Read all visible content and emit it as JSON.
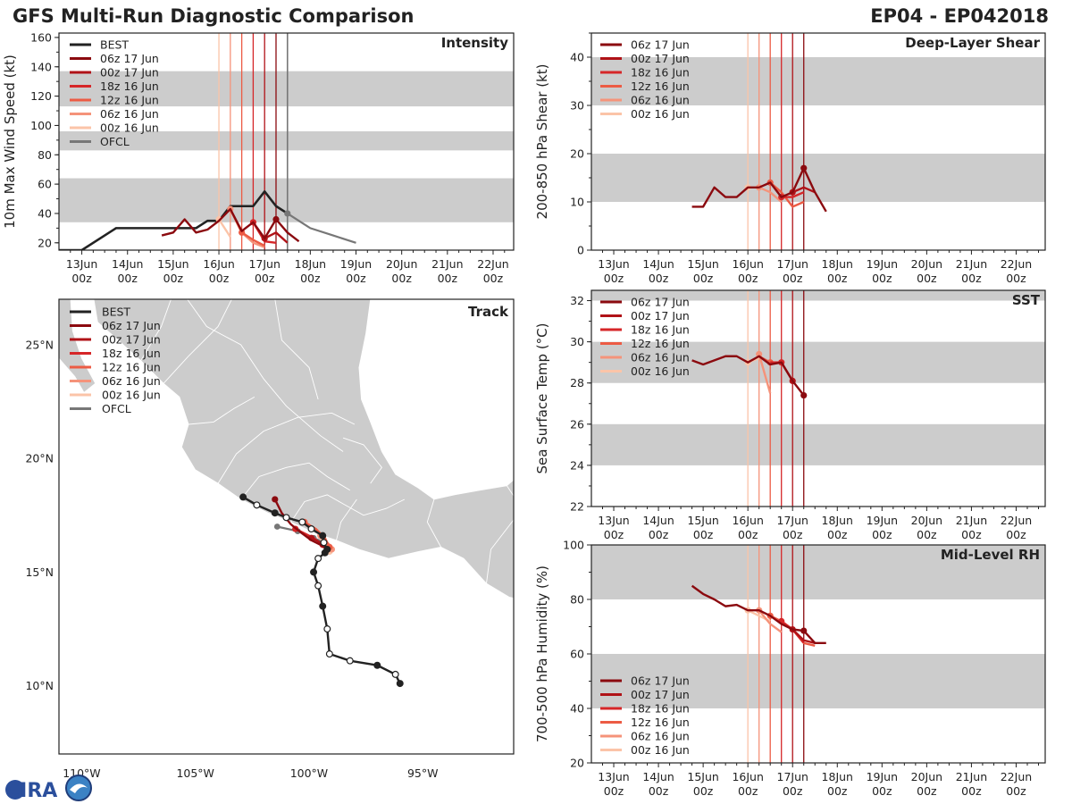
{
  "header": {
    "title": "GFS Multi-Run Diagnostic Comparison",
    "storm_id": "EP04 - EP042018"
  },
  "logo": {
    "text": "CIRA"
  },
  "colors": {
    "best": "#222222",
    "ofcl": "#777777",
    "band": "#cccccc",
    "runs": [
      "#8b0a0f",
      "#b01217",
      "#d62628",
      "#ec5b44",
      "#f5937a",
      "#fbc4a8"
    ]
  },
  "time_ticks": [
    "13Jun",
    "14Jun",
    "15Jun",
    "16Jun",
    "17Jun",
    "18Jun",
    "19Jun",
    "20Jun",
    "21Jun",
    "22Jun"
  ],
  "time_sub": "00z",
  "chart_data": [
    {
      "id": "intensity",
      "type": "line",
      "title": "Intensity",
      "ylabel": "10m Max Wind Speed (kt)",
      "xlim": [
        12.5,
        22.45
      ],
      "ylim": [
        15,
        163
      ],
      "yticks": [
        20,
        40,
        60,
        80,
        100,
        120,
        140,
        160
      ],
      "bands": [
        [
          34,
          64
        ],
        [
          83,
          96
        ],
        [
          113,
          137
        ]
      ],
      "init_lines": [
        16.0,
        16.25,
        16.5,
        16.75,
        17.0,
        17.25
      ],
      "ofcl_line": 17.5,
      "legend": [
        "BEST",
        "06z 17 Jun",
        "00z 17 Jun",
        "18z 16 Jun",
        "12z 16 Jun",
        "06z 16 Jun",
        "00z 16 Jun",
        "OFCL"
      ],
      "best": {
        "x": [
          12.5,
          13.0,
          13.75,
          15.0,
          15.25,
          15.5,
          15.75,
          16.0,
          16.25,
          16.5,
          16.75,
          17.0,
          17.25,
          17.5
        ],
        "y": [
          15,
          15,
          30,
          30,
          30,
          30,
          35,
          35,
          45,
          45,
          45,
          55,
          45,
          40
        ]
      },
      "ofcl": {
        "x": [
          17.5,
          17.75,
          18.0,
          18.5,
          19.0
        ],
        "y": [
          40,
          35,
          30,
          25,
          20
        ]
      },
      "runs": [
        {
          "name": "06z 17 Jun",
          "x": [
            14.75,
            15.0,
            15.25,
            15.5,
            15.75,
            16.0,
            16.25,
            16.5,
            16.75,
            17.0,
            17.25,
            17.5,
            17.75
          ],
          "y": [
            25,
            27,
            36,
            27,
            29,
            35,
            43,
            28,
            34,
            23,
            36,
            27,
            21
          ]
        },
        {
          "name": "00z 17 Jun",
          "x": [
            17.0,
            17.25,
            17.5
          ],
          "y": [
            23,
            27,
            20
          ]
        },
        {
          "name": "18z 16 Jun",
          "x": [
            16.75,
            17.0,
            17.25
          ],
          "y": [
            34,
            21,
            20
          ]
        },
        {
          "name": "12z 16 Jun",
          "x": [
            16.25,
            16.5,
            16.75,
            17.0
          ],
          "y": [
            43,
            27,
            22,
            18
          ]
        },
        {
          "name": "06z 16 Jun",
          "x": [
            16.25,
            16.5,
            16.75,
            17.0
          ],
          "y": [
            43,
            27,
            20,
            17
          ]
        },
        {
          "name": "00z 16 Jun",
          "x": [
            16.0,
            16.25
          ],
          "y": [
            36,
            24
          ]
        }
      ]
    },
    {
      "id": "shear",
      "type": "line",
      "title": "Deep-Layer Shear",
      "ylabel": "200-850 hPa Shear (kt)",
      "xlim": [
        12.5,
        22.65
      ],
      "ylim": [
        0,
        45
      ],
      "yticks": [
        0,
        10,
        20,
        30,
        40
      ],
      "bands": [
        [
          10,
          20
        ],
        [
          30,
          40
        ]
      ],
      "init_lines": [
        16.0,
        16.25,
        16.5,
        16.75,
        17.0,
        17.25
      ],
      "legend": [
        "06z 17 Jun",
        "00z 17 Jun",
        "18z 16 Jun",
        "12z 16 Jun",
        "06z 16 Jun",
        "00z 16 Jun"
      ],
      "runs": [
        {
          "name": "06z 17 Jun",
          "x": [
            14.75,
            15.0,
            15.25,
            15.5,
            15.75,
            16.0,
            16.25,
            16.5,
            16.75,
            17.0,
            17.25,
            17.5,
            17.75
          ],
          "y": [
            9,
            9,
            13,
            11,
            11,
            13,
            13,
            14,
            11,
            12,
            17,
            12,
            8
          ]
        },
        {
          "name": "00z 17 Jun",
          "x": [
            17.0,
            17.25,
            17.5
          ],
          "y": [
            12,
            13,
            12
          ]
        },
        {
          "name": "18z 16 Jun",
          "x": [
            16.75,
            17.0,
            17.25
          ],
          "y": [
            11,
            11,
            12
          ]
        },
        {
          "name": "12z 16 Jun",
          "x": [
            16.5,
            16.75,
            17.0,
            17.25
          ],
          "y": [
            14,
            12,
            9,
            10
          ]
        },
        {
          "name": "06z 16 Jun",
          "x": [
            16.25,
            16.5,
            16.75
          ],
          "y": [
            13,
            12,
            10
          ]
        },
        {
          "name": "00z 16 Jun",
          "x": [
            16.0,
            16.25
          ],
          "y": [
            13,
            13
          ]
        }
      ]
    },
    {
      "id": "sst",
      "type": "line",
      "title": "SST",
      "ylabel": "Sea Surface Temp (°C)",
      "xlim": [
        12.5,
        22.65
      ],
      "ylim": [
        22,
        32.5
      ],
      "yticks": [
        22,
        24,
        26,
        28,
        30,
        32
      ],
      "bands": [
        [
          24,
          26
        ],
        [
          28,
          30
        ],
        [
          32,
          32.5
        ]
      ],
      "init_lines": [
        16.0,
        16.25,
        16.5,
        16.75,
        17.0,
        17.25
      ],
      "legend": [
        "06z 17 Jun",
        "00z 17 Jun",
        "18z 16 Jun",
        "12z 16 Jun",
        "06z 16 Jun",
        "00z 16 Jun"
      ],
      "runs": [
        {
          "name": "06z 17 Jun",
          "x": [
            14.75,
            15.0,
            15.25,
            15.5,
            15.75,
            16.0,
            16.25,
            16.5,
            16.75,
            17.0,
            17.25
          ],
          "y": [
            29.1,
            28.9,
            29.1,
            29.3,
            29.3,
            29.0,
            29.3,
            28.9,
            29.0,
            28.1,
            27.4
          ]
        },
        {
          "name": "00z 17 Jun",
          "x": [
            16.75,
            17.0
          ],
          "y": [
            29.0,
            28.1
          ]
        },
        {
          "name": "18z 16 Jun",
          "x": [
            16.5,
            16.75
          ],
          "y": [
            29.0,
            29.0
          ]
        },
        {
          "name": "12z 16 Jun",
          "x": [
            16.25,
            16.5,
            16.75
          ],
          "y": [
            29.3,
            29.0,
            29.0
          ]
        },
        {
          "name": "06z 16 Jun",
          "x": [
            16.25,
            16.5
          ],
          "y": [
            29.4,
            27.5
          ]
        },
        {
          "name": "00z 16 Jun",
          "x": [
            16.0,
            16.25
          ],
          "y": [
            29.0,
            29.2
          ]
        }
      ]
    },
    {
      "id": "rh",
      "type": "line",
      "title": "Mid-Level RH",
      "ylabel": "700-500 hPa Humidity (%)",
      "xlim": [
        12.5,
        22.65
      ],
      "ylim": [
        20,
        100
      ],
      "yticks": [
        20,
        40,
        60,
        80,
        100
      ],
      "bands": [
        [
          40,
          60
        ],
        [
          80,
          100
        ]
      ],
      "init_lines": [
        16.0,
        16.25,
        16.5,
        16.75,
        17.0,
        17.25
      ],
      "legend": [
        "06z 17 Jun",
        "00z 17 Jun",
        "18z 16 Jun",
        "12z 16 Jun",
        "06z 16 Jun",
        "00z 16 Jun"
      ],
      "runs": [
        {
          "name": "06z 17 Jun",
          "x": [
            14.75,
            15.0,
            15.25,
            15.5,
            15.75,
            16.0,
            16.25,
            16.5,
            16.75,
            17.0,
            17.25,
            17.5,
            17.75
          ],
          "y": [
            85,
            82,
            80,
            77.5,
            78,
            76,
            76,
            74,
            71,
            69,
            68.5,
            64,
            64
          ]
        },
        {
          "name": "00z 17 Jun",
          "x": [
            17.0,
            17.25,
            17.5
          ],
          "y": [
            69,
            65,
            64
          ]
        },
        {
          "name": "18z 16 Jun",
          "x": [
            16.75,
            17.0,
            17.25
          ],
          "y": [
            72,
            69,
            64
          ]
        },
        {
          "name": "12z 16 Jun",
          "x": [
            16.5,
            16.75,
            17.0,
            17.25,
            17.5
          ],
          "y": [
            74,
            72,
            69,
            64,
            63
          ]
        },
        {
          "name": "06z 16 Jun",
          "x": [
            16.25,
            16.5,
            16.75
          ],
          "y": [
            76,
            71,
            68
          ]
        },
        {
          "name": "00z 16 Jun",
          "x": [
            16.0,
            16.25,
            16.5
          ],
          "y": [
            76,
            74,
            72
          ]
        }
      ]
    },
    {
      "id": "track",
      "type": "scatter",
      "title": "Track",
      "xlim": [
        -111.0,
        -91.0
      ],
      "ylim": [
        7.0,
        27.0
      ],
      "xticks": [
        -110,
        -105,
        -100,
        -95
      ],
      "xtick_labels": [
        "110°W",
        "105°W",
        "100°W",
        "95°W"
      ],
      "yticks": [
        10,
        15,
        20,
        25
      ],
      "ytick_labels": [
        "10N",
        "15N",
        "20N",
        "25N"
      ],
      "legend": [
        "BEST",
        "06z 17 Jun",
        "00z 17 Jun",
        "18z 16 Jun",
        "12z 16 Jun",
        "06z 16 Jun",
        "00z 16 Jun",
        "OFCL"
      ],
      "best": {
        "lon": [
          -96.0,
          -96.2,
          -97.0,
          -98.2,
          -99.1,
          -99.2,
          -99.4,
          -99.6,
          -99.8,
          -99.6,
          -99.3,
          -99.2,
          -99.35,
          -99.4,
          -99.9,
          -100.3,
          -101.0,
          -101.5,
          -102.3,
          -102.9
        ],
        "lat": [
          10.1,
          10.5,
          10.9,
          11.1,
          11.4,
          12.5,
          13.5,
          14.4,
          15.0,
          15.6,
          15.85,
          16.0,
          16.3,
          16.6,
          16.9,
          17.2,
          17.4,
          17.6,
          17.95,
          18.3
        ],
        "filled": [
          true,
          false,
          true,
          false,
          false,
          false,
          true,
          false,
          true,
          false,
          true,
          true,
          false,
          true,
          false,
          false,
          false,
          true,
          false,
          true
        ]
      },
      "ofcl": {
        "lon": [
          -99.3,
          -99.8,
          -100.5,
          -101.4
        ],
        "lat": [
          16.3,
          16.5,
          16.8,
          17.0
        ]
      },
      "runs": [
        {
          "name": "06z 17 Jun",
          "lon": [
            -101.5,
            -101.2,
            -100.8,
            -100.3,
            -99.9,
            -99.5,
            -99.2
          ],
          "lat": [
            18.2,
            17.6,
            17.1,
            16.7,
            16.4,
            16.2,
            16.0
          ]
        },
        {
          "name": "00z 17 Jun",
          "lon": [
            -99.9,
            -99.5,
            -99.2
          ],
          "lat": [
            16.5,
            16.3,
            16.0
          ]
        },
        {
          "name": "18z 16 Jun",
          "lon": [
            -100.6,
            -100.2,
            -99.8,
            -99.4
          ],
          "lat": [
            16.9,
            16.7,
            16.5,
            16.2
          ]
        },
        {
          "name": "12z 16 Jun",
          "lon": [
            -100.2,
            -99.7,
            -99.3,
            -99.1
          ],
          "lat": [
            17.2,
            16.9,
            16.5,
            16.1
          ]
        },
        {
          "name": "06z 16 Jun",
          "lon": [
            -99.5,
            -99.3,
            -99.1,
            -99.0
          ],
          "lat": [
            16.6,
            16.4,
            16.2,
            16.0
          ]
        },
        {
          "name": "00z 16 Jun",
          "lon": [
            -99.4,
            -99.2,
            -99.1
          ],
          "lat": [
            16.5,
            16.2,
            15.9
          ]
        }
      ]
    }
  ]
}
